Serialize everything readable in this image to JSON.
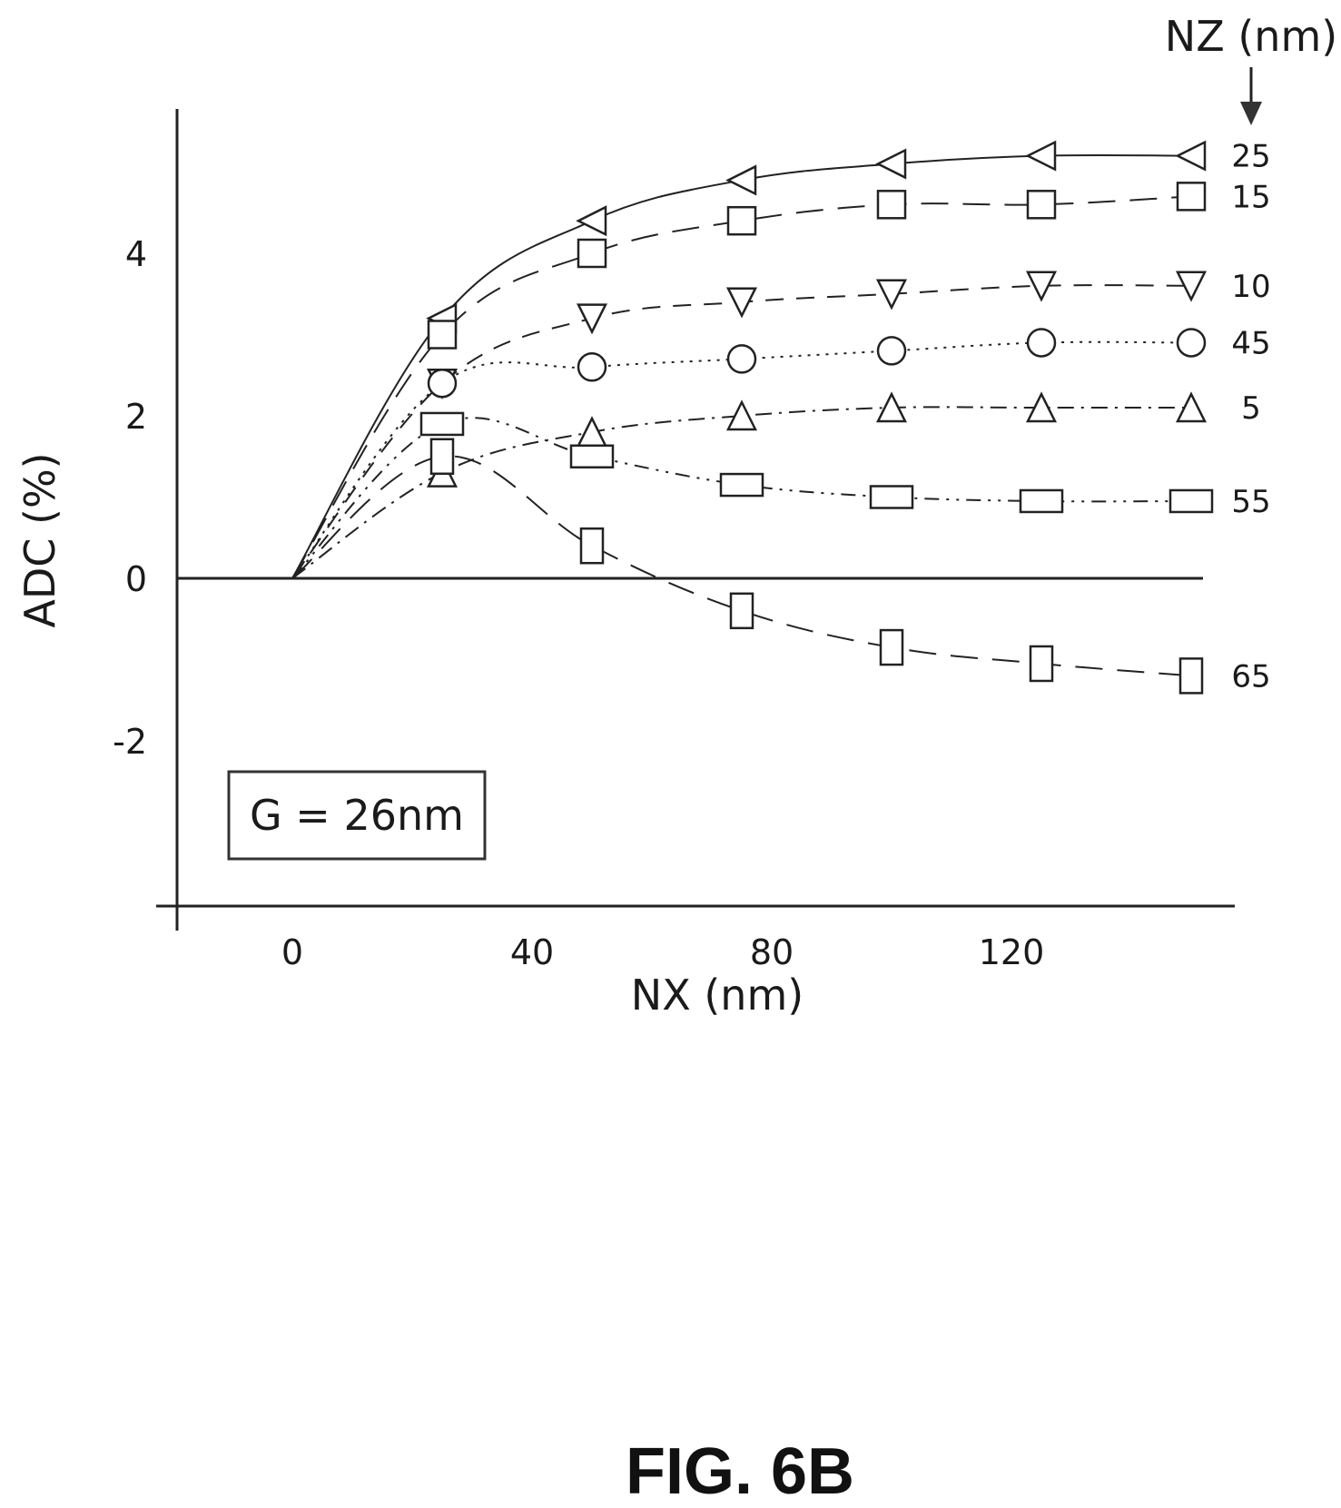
{
  "chart_data": {
    "type": "line",
    "xlabel": "NX (nm)",
    "ylabel": "ADC (%)",
    "xlim": [
      -20,
      160
    ],
    "ylim": [
      -4,
      5.8
    ],
    "x_ticks": [
      0,
      40,
      80,
      120
    ],
    "x_tick_labels": [
      "0",
      "40",
      "80",
      "120"
    ],
    "y_ticks": [
      4,
      2,
      0,
      -2
    ],
    "y_tick_labels": [
      "4",
      "2",
      "0",
      "-2"
    ],
    "legend_title": "NZ (nm)",
    "annotation": "G = 26nm",
    "grid": false,
    "x": [
      0,
      25,
      50,
      75,
      100,
      125,
      150
    ],
    "series": [
      {
        "name": "25",
        "marker": "triangle-left",
        "dash": "solid",
        "values": [
          0,
          3.2,
          4.4,
          4.9,
          5.1,
          5.2,
          5.2
        ]
      },
      {
        "name": "15",
        "marker": "square",
        "dash": "long",
        "values": [
          0,
          3.0,
          4.0,
          4.4,
          4.6,
          4.6,
          4.7
        ]
      },
      {
        "name": "10",
        "marker": "triangle-down",
        "dash": "medium",
        "values": [
          0,
          2.4,
          3.2,
          3.4,
          3.5,
          3.6,
          3.6
        ]
      },
      {
        "name": "45",
        "marker": "circle",
        "dash": "dotted",
        "values": [
          0,
          2.4,
          2.6,
          2.7,
          2.8,
          2.9,
          2.9
        ]
      },
      {
        "name": "5",
        "marker": "triangle-up",
        "dash": "dash-dot",
        "values": [
          0,
          1.3,
          1.8,
          2.0,
          2.1,
          2.1,
          2.1
        ]
      },
      {
        "name": "55",
        "marker": "wide-rect",
        "dash": "dash-dot-dot",
        "values": [
          0,
          1.9,
          1.5,
          1.15,
          1.0,
          0.95,
          0.95
        ]
      },
      {
        "name": "65",
        "marker": "tall-rect",
        "dash": "long",
        "values": [
          0,
          1.5,
          0.4,
          -0.4,
          -0.85,
          -1.05,
          -1.2
        ]
      }
    ]
  },
  "figure_label": "FIG. 6B"
}
